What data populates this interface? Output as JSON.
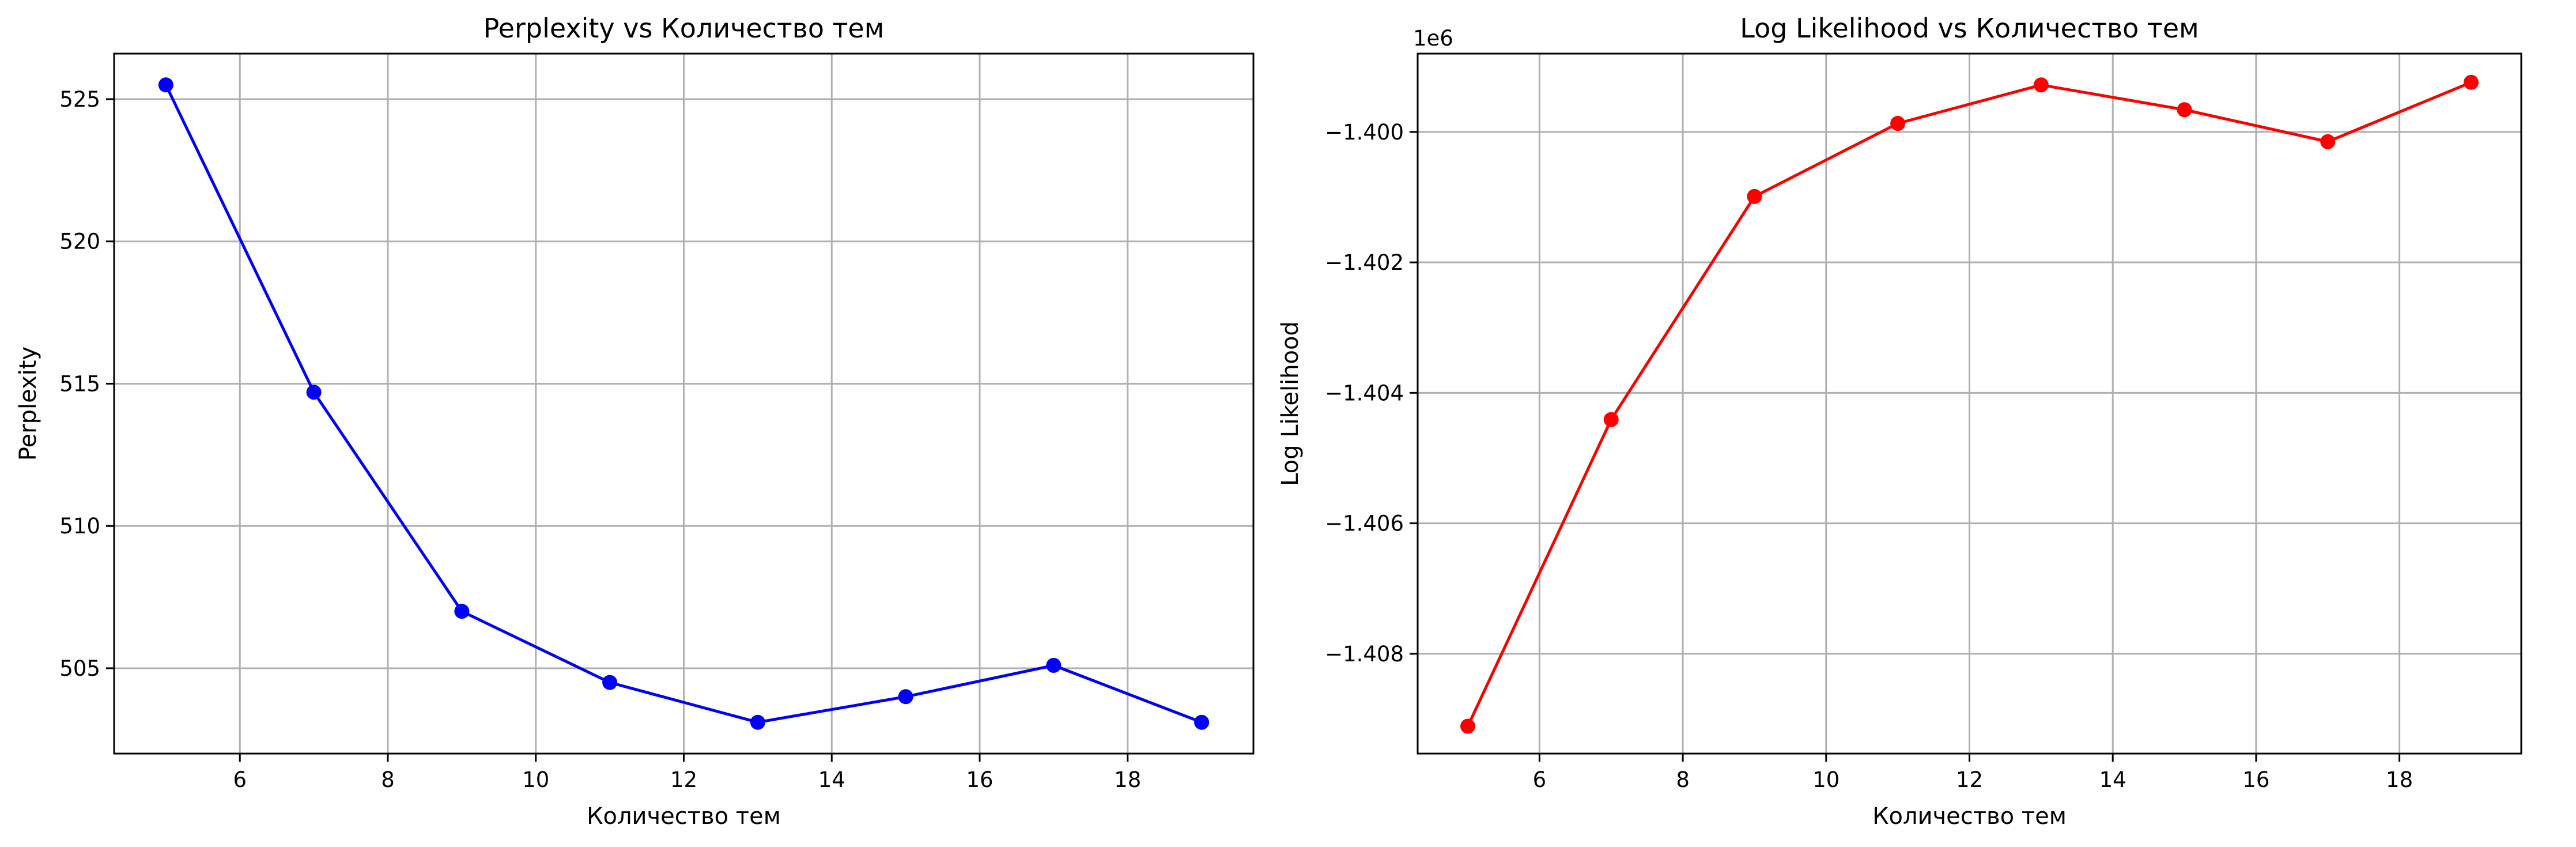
{
  "chart_data": [
    {
      "type": "line",
      "title": "Perplexity vs Количество тем",
      "xlabel": "Количество тем",
      "ylabel": "Perplexity",
      "x": [
        5,
        7,
        9,
        11,
        13,
        15,
        17,
        19
      ],
      "series": [
        {
          "values": [
            525.5,
            514.7,
            507.0,
            504.5,
            503.1,
            504.0,
            505.1,
            503.1
          ],
          "color": "#0000ff"
        }
      ],
      "xlim": [
        4.3,
        19.7
      ],
      "ylim": [
        502.0,
        526.6
      ],
      "xticks": [
        6,
        8,
        10,
        12,
        14,
        16,
        18
      ],
      "yticks": [
        505,
        510,
        515,
        520,
        525
      ],
      "ytick_labels": [
        "505",
        "510",
        "515",
        "520",
        "525"
      ],
      "offset_label": "",
      "grid": true,
      "marker": "circle"
    },
    {
      "type": "line",
      "title": "Log Likelihood vs Количество тем",
      "xlabel": "Количество тем",
      "ylabel": "Log Likelihood",
      "x": [
        5,
        7,
        9,
        11,
        13,
        15,
        17,
        19
      ],
      "series": [
        {
          "values": [
            -1409110,
            -1404410,
            -1400990,
            -1399870,
            -1399280,
            -1399660,
            -1400150,
            -1399240
          ],
          "color": "#ff0000"
        }
      ],
      "xlim": [
        4.3,
        19.7
      ],
      "ylim": [
        -1409530,
        -1398800
      ],
      "xticks": [
        6,
        8,
        10,
        12,
        14,
        16,
        18
      ],
      "yticks": [
        -1408000,
        -1406000,
        -1404000,
        -1402000,
        -1400000
      ],
      "ytick_labels": [
        "−1.408",
        "−1.406",
        "−1.404",
        "−1.402",
        "−1.400"
      ],
      "offset_label": "1e6",
      "grid": true,
      "marker": "circle"
    }
  ]
}
